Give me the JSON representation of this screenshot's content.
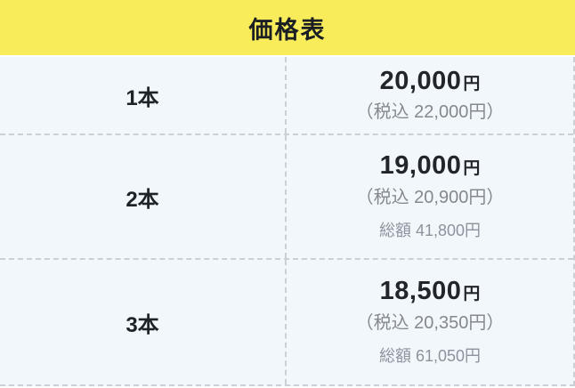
{
  "chart_data": {
    "type": "table",
    "title": "価格表",
    "rows": [
      {
        "quantity": "1本",
        "price_yen": 20000,
        "tax_included_yen": 22000,
        "total_yen": null
      },
      {
        "quantity": "2本",
        "price_yen": 19000,
        "tax_included_yen": 20900,
        "total_yen": 41800
      },
      {
        "quantity": "3本",
        "price_yen": 18500,
        "tax_included_yen": 20350,
        "total_yen": 61050
      }
    ]
  },
  "table": {
    "title": "価格表",
    "rows": [
      {
        "quantity": "1本",
        "price": "20,000",
        "unit": "円",
        "tax_included": "（税込 22,000円）"
      },
      {
        "quantity": "2本",
        "price": "19,000",
        "unit": "円",
        "tax_included": "（税込 20,900円）",
        "total": "総額 41,800円"
      },
      {
        "quantity": "3本",
        "price": "18,500",
        "unit": "円",
        "tax_included": "（税込 20,350円）",
        "total": "総額 61,050円"
      }
    ]
  },
  "colors": {
    "header_bg": "#F8EC5B",
    "cell_bg": "#F1F7FB",
    "dashed_border": "#CBD0D6",
    "text_dark": "#1E2329",
    "tax_gray": "#85898F",
    "total_gray": "#8C939D"
  }
}
